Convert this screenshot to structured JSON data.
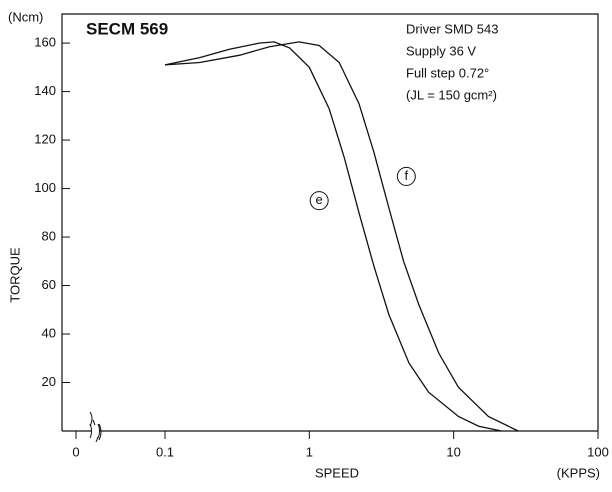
{
  "chart_data": {
    "type": "line",
    "title": "SECM 569",
    "notes": [
      "Driver SMD 543",
      "Supply 36 V",
      "Full step 0.72°",
      "(JL = 150 gcm²)"
    ],
    "y_unit": "(Ncm)",
    "y_label": "TORQUE",
    "x_label": "SPEED",
    "x_unit": "(KPPS)",
    "x_log": true,
    "xlim": [
      0.1,
      100
    ],
    "xticks": [
      0.1,
      1,
      10,
      100
    ],
    "x_zero_tick": 0,
    "ylim": [
      0,
      172
    ],
    "yticks": [
      20,
      40,
      60,
      80,
      100,
      120,
      140,
      160
    ],
    "series": [
      {
        "name": "e",
        "color": "#111111",
        "x": [
          0.1,
          0.174,
          0.28,
          0.45,
          0.57,
          0.73,
          1,
          1.37,
          1.74,
          2.21,
          2.8,
          3.56,
          4.9,
          6.7,
          10.8,
          14.9,
          21.4
        ],
        "values": [
          151,
          154,
          157.5,
          160,
          160.5,
          158,
          150,
          133,
          113,
          90,
          68,
          48,
          28,
          16,
          6,
          2,
          0
        ]
      },
      {
        "name": "f",
        "color": "#111111",
        "x": [
          0.1,
          0.174,
          0.33,
          0.53,
          0.85,
          1.17,
          1.61,
          2.21,
          2.8,
          3.56,
          4.5,
          5.74,
          7.9,
          10.8,
          17.4,
          28
        ],
        "values": [
          151,
          152,
          155,
          158.5,
          160.5,
          159,
          152,
          135,
          115,
          92,
          70,
          52,
          32,
          18,
          6,
          0
        ]
      }
    ],
    "annotations": [
      {
        "text": "e",
        "x": 1.17,
        "y": 95
      },
      {
        "text": "f",
        "x": 4.7,
        "y": 105
      }
    ]
  }
}
